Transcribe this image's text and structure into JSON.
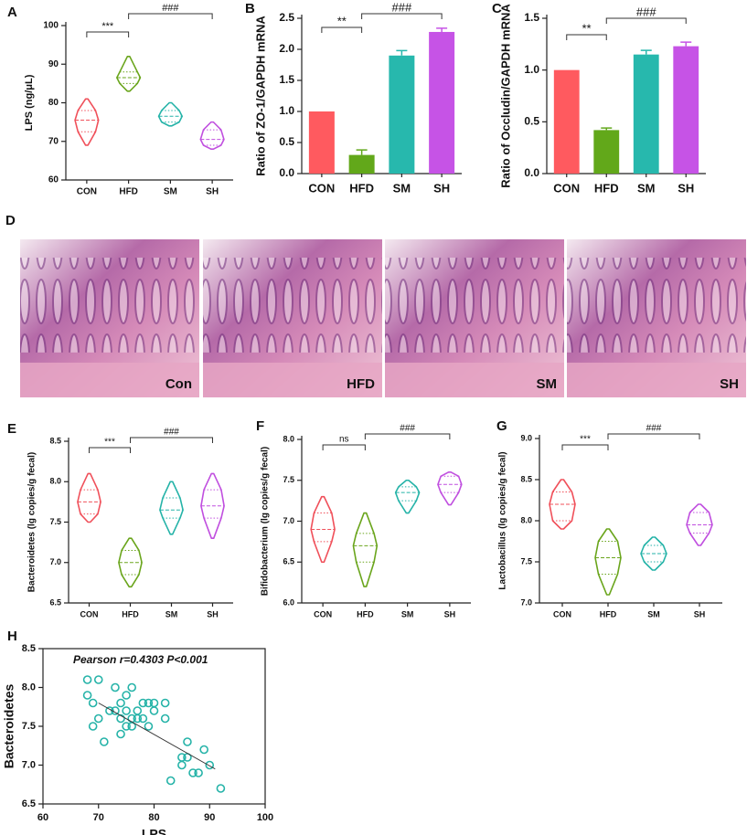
{
  "chart_data": [
    {
      "type": "violin",
      "panel": "A",
      "ylabel": "LPS (ng/μL)",
      "categories": [
        "CON",
        "HFD",
        "SM",
        "SH"
      ],
      "colors": [
        "#f0505a",
        "#6aa51c",
        "#25b3a8",
        "#c04fdf"
      ],
      "stats": [
        {
          "min": 69,
          "q1": 72.5,
          "median": 75.5,
          "q3": 78,
          "max": 81
        },
        {
          "min": 83,
          "q1": 85,
          "median": 86.5,
          "q3": 88,
          "max": 92
        },
        {
          "min": 74,
          "q1": 75,
          "median": 76.5,
          "q3": 78,
          "max": 80
        },
        {
          "min": 68,
          "q1": 69,
          "median": 70.5,
          "q3": 73,
          "max": 75
        }
      ],
      "annotations": [
        "***",
        "###"
      ],
      "ylim": [
        60,
        100
      ],
      "yticks": [
        60,
        70,
        80,
        90,
        100
      ]
    },
    {
      "type": "bar",
      "panel": "B",
      "ylabel": "Ratio of ZO-1/GAPDH mRNA",
      "categories": [
        "CON",
        "HFD",
        "SM",
        "SH"
      ],
      "colors": [
        "#ff5a5f",
        "#62a81a",
        "#27b8ad",
        "#c653e6"
      ],
      "values": [
        1.0,
        0.3,
        1.9,
        2.28
      ],
      "errors": [
        0,
        0.08,
        0.08,
        0.06
      ],
      "annotations": [
        "**",
        "###"
      ],
      "ylim": [
        0,
        2.5
      ],
      "yticks": [
        {
          "value": 0,
          "label": "0.0"
        },
        0.5,
        {
          "value": 1,
          "label": "1.0"
        },
        1.5,
        {
          "value": 2,
          "label": "2.0"
        },
        2.5
      ]
    },
    {
      "type": "bar",
      "panel": "C",
      "ylabel": "Ratio of Occludin/GAPDH mRNA",
      "categories": [
        "CON",
        "HFD",
        "SM",
        "SH"
      ],
      "colors": [
        "#ff5a5f",
        "#62a81a",
        "#27b8ad",
        "#c653e6"
      ],
      "values": [
        1.0,
        0.42,
        1.15,
        1.23
      ],
      "errors": [
        0,
        0.02,
        0.04,
        0.04
      ],
      "annotations": [
        "**",
        "###"
      ],
      "ylim": [
        0,
        1.5
      ],
      "yticks": [
        {
          "value": 0,
          "label": "0.0"
        },
        0.5,
        {
          "value": 1,
          "label": "1.0"
        },
        1.5
      ]
    },
    {
      "type": "violin",
      "panel": "E",
      "ylabel": "Bacteroidetes (lg copies/g fecal)",
      "categories": [
        "CON",
        "HFD",
        "SM",
        "SH"
      ],
      "colors": [
        "#f0505a",
        "#6aa51c",
        "#25b3a8",
        "#c04fdf"
      ],
      "stats": [
        {
          "min": 7.5,
          "q1": 7.6,
          "median": 7.75,
          "q3": 7.9,
          "max": 8.1
        },
        {
          "min": 6.7,
          "q1": 6.85,
          "median": 7.0,
          "q3": 7.15,
          "max": 7.3
        },
        {
          "min": 7.35,
          "q1": 7.55,
          "median": 7.65,
          "q3": 7.8,
          "max": 8.0
        },
        {
          "min": 7.3,
          "q1": 7.55,
          "median": 7.7,
          "q3": 7.9,
          "max": 8.1
        }
      ],
      "annotations": [
        "***",
        "###"
      ],
      "ylim": [
        6.5,
        8.5
      ],
      "yticks": [
        6.5,
        {
          "value": 7,
          "label": "7.0"
        },
        7.5,
        {
          "value": 8,
          "label": "8.0"
        },
        8.5
      ]
    },
    {
      "type": "violin",
      "panel": "F",
      "ylabel": "Bifidobacterium (lg copies/g fecal)",
      "categories": [
        "CON",
        "HFD",
        "SM",
        "SH"
      ],
      "colors": [
        "#f0505a",
        "#6aa51c",
        "#25b3a8",
        "#c04fdf"
      ],
      "stats": [
        {
          "min": 6.5,
          "q1": 6.75,
          "median": 6.9,
          "q3": 7.1,
          "max": 7.3
        },
        {
          "min": 6.2,
          "q1": 6.5,
          "median": 6.7,
          "q3": 6.85,
          "max": 7.1
        },
        {
          "min": 7.1,
          "q1": 7.25,
          "median": 7.35,
          "q3": 7.42,
          "max": 7.5
        },
        {
          "min": 7.2,
          "q1": 7.35,
          "median": 7.45,
          "q3": 7.55,
          "max": 7.6
        }
      ],
      "annotations": [
        "ns",
        "###"
      ],
      "ylim": [
        6,
        8
      ],
      "yticks": [
        {
          "value": 6,
          "label": "6.0"
        },
        6.5,
        {
          "value": 7,
          "label": "7.0"
        },
        7.5,
        {
          "value": 8,
          "label": "8.0"
        }
      ]
    },
    {
      "type": "violin",
      "panel": "G",
      "ylabel": "Lactobacillus (lg copies/g fecal)",
      "categories": [
        "CON",
        "HFD",
        "SM",
        "SH"
      ],
      "colors": [
        "#f0505a",
        "#6aa51c",
        "#25b3a8",
        "#c04fdf"
      ],
      "stats": [
        {
          "min": 7.9,
          "q1": 8.0,
          "median": 8.2,
          "q3": 8.35,
          "max": 8.5
        },
        {
          "min": 7.1,
          "q1": 7.35,
          "median": 7.55,
          "q3": 7.75,
          "max": 7.9
        },
        {
          "min": 7.4,
          "q1": 7.5,
          "median": 7.6,
          "q3": 7.7,
          "max": 7.8
        },
        {
          "min": 7.7,
          "q1": 7.85,
          "median": 7.95,
          "q3": 8.1,
          "max": 8.2
        }
      ],
      "annotations": [
        "***",
        "###"
      ],
      "ylim": [
        7,
        9
      ],
      "yticks": [
        {
          "value": 7,
          "label": "7.0"
        },
        7.5,
        {
          "value": 8,
          "label": "8.0"
        },
        8.5,
        {
          "value": 9,
          "label": "9.0"
        }
      ]
    },
    {
      "type": "scatter",
      "panel": "H",
      "title": "Pearson r=0.4303 P<0.001",
      "xlabel": "LPS",
      "ylabel": "Bacteroidetes",
      "color": "#25b3a8",
      "x": [
        68,
        70,
        68,
        69,
        70,
        69,
        71,
        72,
        73,
        73,
        74,
        74,
        74,
        75,
        75,
        75,
        76,
        76,
        76,
        77,
        77,
        78,
        78,
        79,
        79,
        80,
        80,
        82,
        82,
        83,
        85,
        85,
        86,
        86,
        87,
        88,
        89,
        90,
        92
      ],
      "values": [
        8.1,
        8.1,
        7.9,
        7.8,
        7.6,
        7.5,
        7.3,
        7.7,
        7.7,
        8.0,
        7.8,
        7.6,
        7.4,
        7.9,
        7.7,
        7.5,
        8.0,
        7.6,
        7.5,
        7.6,
        7.7,
        7.8,
        7.6,
        7.8,
        7.5,
        7.8,
        7.7,
        7.8,
        7.6,
        6.8,
        7.1,
        7.0,
        7.3,
        7.1,
        6.9,
        6.9,
        7.2,
        7.0,
        6.7
      ],
      "fit": {
        "x": [
          70,
          91
        ],
        "values": [
          7.8,
          6.95
        ]
      },
      "xlim": [
        60,
        100
      ],
      "xticks": [
        60,
        70,
        80,
        90,
        100
      ],
      "ylim": [
        6.5,
        8.5
      ],
      "yticks": [
        6.5,
        {
          "value": 7,
          "label": "7.0"
        },
        7.5,
        {
          "value": 8,
          "label": "8.0"
        },
        8.5
      ]
    }
  ],
  "histology": {
    "panel": "D",
    "images": [
      {
        "label": "Con"
      },
      {
        "label": "HFD"
      },
      {
        "label": "SM"
      },
      {
        "label": "SH"
      }
    ]
  }
}
